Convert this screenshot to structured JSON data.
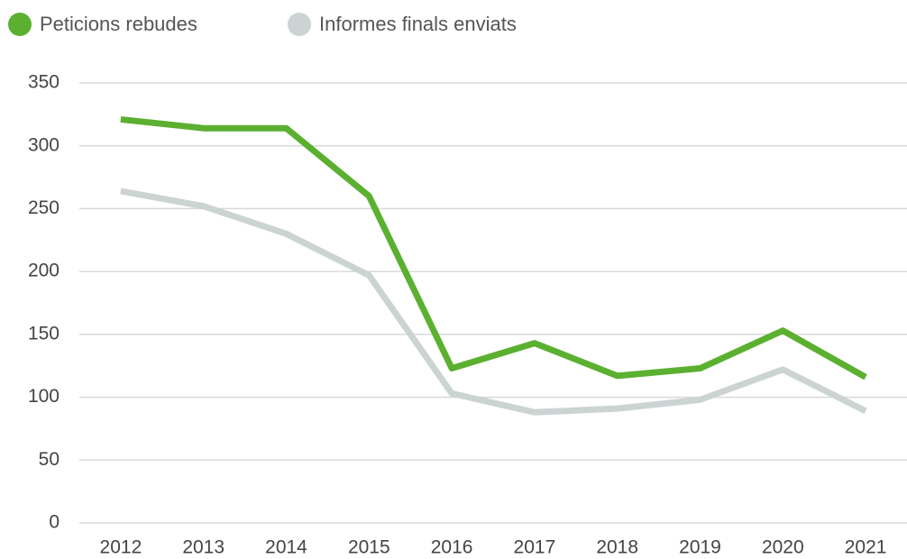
{
  "chart_data": {
    "type": "line",
    "categories": [
      "2012",
      "2013",
      "2014",
      "2015",
      "2016",
      "2017",
      "2018",
      "2019",
      "2020",
      "2021"
    ],
    "series": [
      {
        "name": "Peticions rebudes",
        "color": "#5bb030",
        "values": [
          321,
          314,
          314,
          260,
          123,
          143,
          117,
          123,
          153,
          116
        ]
      },
      {
        "name": "Informes finals enviats",
        "color": "#ccd3d3",
        "values": [
          264,
          252,
          230,
          197,
          103,
          88,
          91,
          98,
          122,
          89
        ]
      }
    ],
    "ylim": [
      0,
      350
    ],
    "yticks": [
      0,
      50,
      100,
      150,
      200,
      250,
      300,
      350
    ],
    "grid": true,
    "legend": "top"
  }
}
